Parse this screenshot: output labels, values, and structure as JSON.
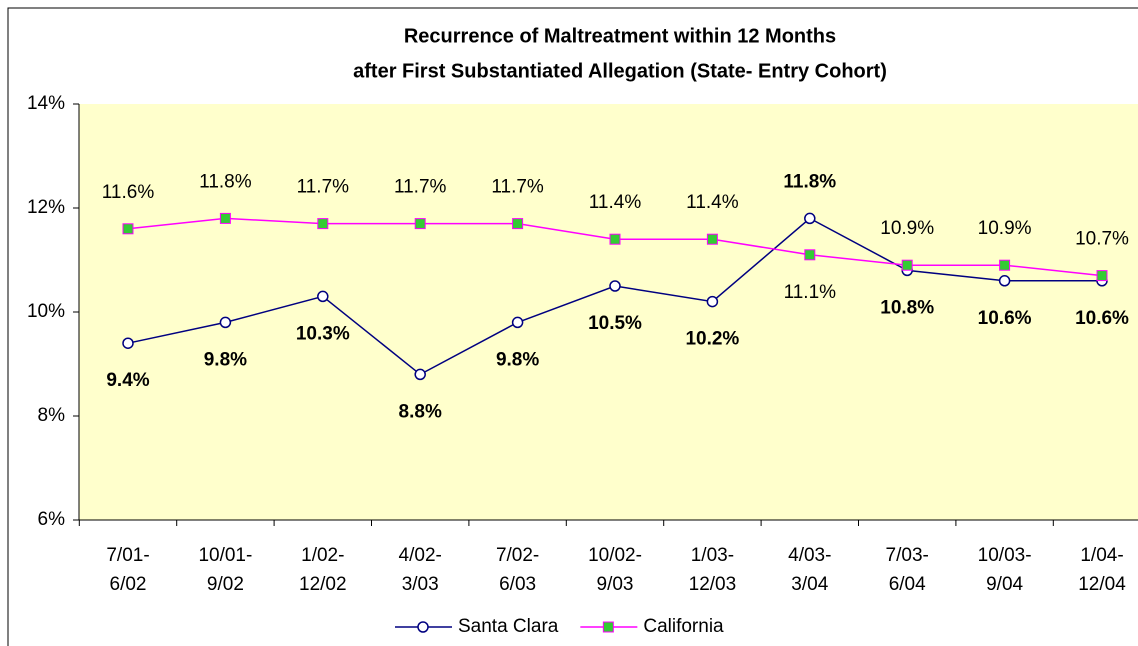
{
  "chart_data": {
    "type": "line",
    "title": [
      "Recurrence of Maltreatment within 12 Months",
      "after First Substantiated Allegation  (State- Entry Cohort)"
    ],
    "categories": [
      [
        "7/01-",
        "6/02"
      ],
      [
        "10/01-",
        "9/02"
      ],
      [
        "1/02-",
        "12/02"
      ],
      [
        "4/02-",
        "3/03"
      ],
      [
        "7/02-",
        "6/03"
      ],
      [
        "10/02-",
        "9/03"
      ],
      [
        "1/03-",
        "12/03"
      ],
      [
        "4/03-",
        "3/04"
      ],
      [
        "7/03-",
        "6/04"
      ],
      [
        "10/03-",
        "9/04"
      ],
      [
        "1/04-",
        "12/04"
      ]
    ],
    "series": [
      {
        "name": "Santa Clara",
        "color": "#000080",
        "marker": "circle",
        "marker_fill": "#ffffff",
        "bold_labels": true,
        "values": [
          9.4,
          9.8,
          10.3,
          8.8,
          9.8,
          10.5,
          10.2,
          11.8,
          10.8,
          10.6,
          10.6
        ],
        "value_labels": [
          "9.4%",
          "9.8%",
          "10.3%",
          "8.8%",
          "9.8%",
          "10.5%",
          "10.2%",
          "11.8%",
          "10.8%",
          "10.6%",
          "10.6%"
        ]
      },
      {
        "name": "California",
        "color": "#ff00ff",
        "marker": "square",
        "marker_fill": "#33cc33",
        "bold_labels": false,
        "values": [
          11.6,
          11.8,
          11.7,
          11.7,
          11.7,
          11.4,
          11.4,
          11.1,
          10.9,
          10.9,
          10.7
        ],
        "value_labels": [
          "11.6%",
          "11.8%",
          "11.7%",
          "11.7%",
          "11.7%",
          "11.4%",
          "11.4%",
          "11.1%",
          "10.9%",
          "10.9%",
          "10.7%"
        ]
      }
    ],
    "ylim": [
      6,
      14
    ],
    "yticks": [
      {
        "value": 6,
        "label": "6%"
      },
      {
        "value": 8,
        "label": "8%"
      },
      {
        "value": 10,
        "label": "10%"
      },
      {
        "value": 12,
        "label": "12%"
      },
      {
        "value": 14,
        "label": "14%"
      }
    ],
    "plot_background": "#ffffcc",
    "legend": "bottom"
  }
}
